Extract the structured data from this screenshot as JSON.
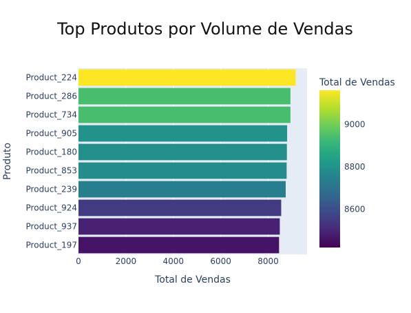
{
  "chart_data": {
    "type": "bar",
    "orientation": "horizontal",
    "title": "Top Produtos por Volume de Vendas",
    "xlabel": "Total de Vendas",
    "ylabel": "Produto",
    "categories": [
      "Product_224",
      "Product_286",
      "Product_734",
      "Product_905",
      "Product_180",
      "Product_853",
      "Product_239",
      "Product_924",
      "Product_937",
      "Product_197"
    ],
    "values": [
      9160,
      8940,
      8940,
      8800,
      8790,
      8780,
      8740,
      8550,
      8490,
      8460
    ],
    "xlim": [
      0,
      9640
    ],
    "xticks": [
      "0",
      "2000",
      "4000",
      "6000",
      "8000"
    ],
    "xtick_values": [
      0,
      2000,
      4000,
      6000,
      8000
    ],
    "grid": true,
    "colorscale": "Viridis",
    "colorbar": {
      "title": "Total de Vendas",
      "range": [
        8420,
        9160
      ],
      "tick_labels": [
        "8600",
        "8800",
        "9000"
      ],
      "tick_values": [
        8600,
        8800,
        9000
      ]
    },
    "colors": {
      "plot_bg": "#e5ecf6",
      "text": "#2a3f5f"
    }
  }
}
